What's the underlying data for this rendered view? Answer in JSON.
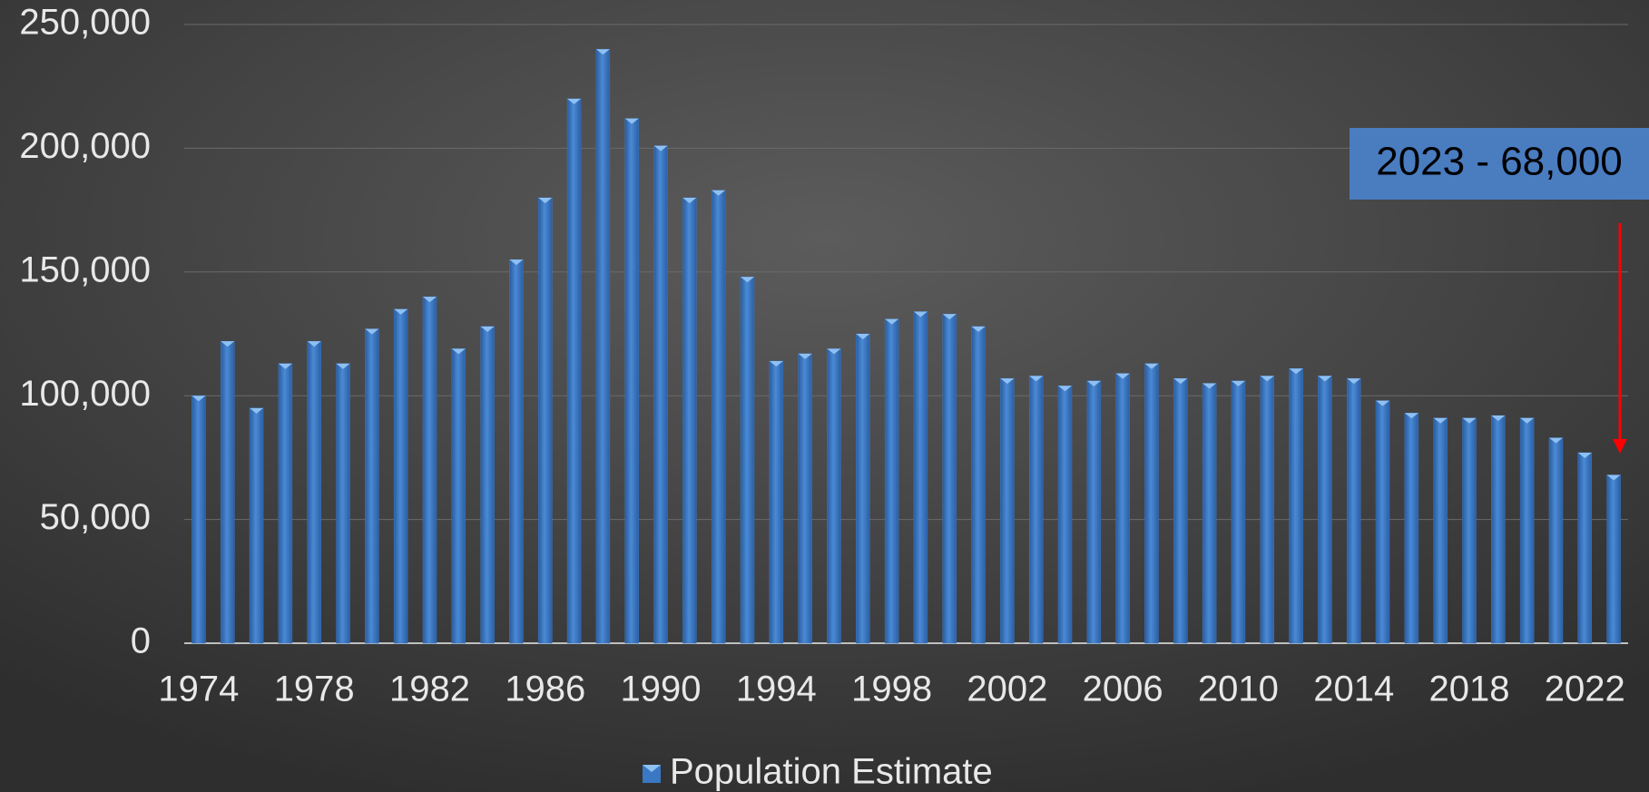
{
  "chart_data": {
    "type": "bar",
    "categories": [
      "1974",
      null,
      null,
      null,
      "1978",
      null,
      null,
      null,
      "1982",
      null,
      null,
      null,
      "1986",
      null,
      null,
      null,
      "1990",
      null,
      null,
      null,
      "1994",
      null,
      null,
      null,
      "1998",
      null,
      null,
      null,
      "2002",
      null,
      null,
      null,
      "2006",
      null,
      null,
      null,
      "2010",
      null,
      null,
      null,
      "2014",
      null,
      null,
      null,
      "2018",
      null,
      null,
      null,
      "2022",
      null
    ],
    "series": [
      {
        "name": "Population Estimate",
        "color": "#3a78c4",
        "values": [
          100000,
          122000,
          95000,
          113000,
          122000,
          113000,
          127000,
          135000,
          140000,
          119000,
          128000,
          155000,
          180000,
          220000,
          240000,
          212000,
          201000,
          180000,
          183000,
          148000,
          114000,
          117000,
          119000,
          125000,
          131000,
          134000,
          133000,
          128000,
          107000,
          108000,
          104000,
          106000,
          109000,
          113000,
          107000,
          105000,
          106000,
          108000,
          111000,
          108000,
          107000,
          98000,
          93000,
          91000,
          91000,
          92000,
          91000,
          83000,
          77000,
          68000
        ]
      }
    ],
    "ylim": [
      0,
      250000
    ],
    "yticks": [
      0,
      {
        "value": 50000,
        "label": "50,000"
      },
      {
        "value": 100000,
        "label": "100,000"
      },
      {
        "value": 150000,
        "label": "150,000"
      },
      {
        "value": 200000,
        "label": "200,000"
      },
      {
        "value": 250000,
        "label": "250,000"
      }
    ],
    "grid": true,
    "legend": "bottom",
    "annotation": "2023 - 68,000"
  }
}
